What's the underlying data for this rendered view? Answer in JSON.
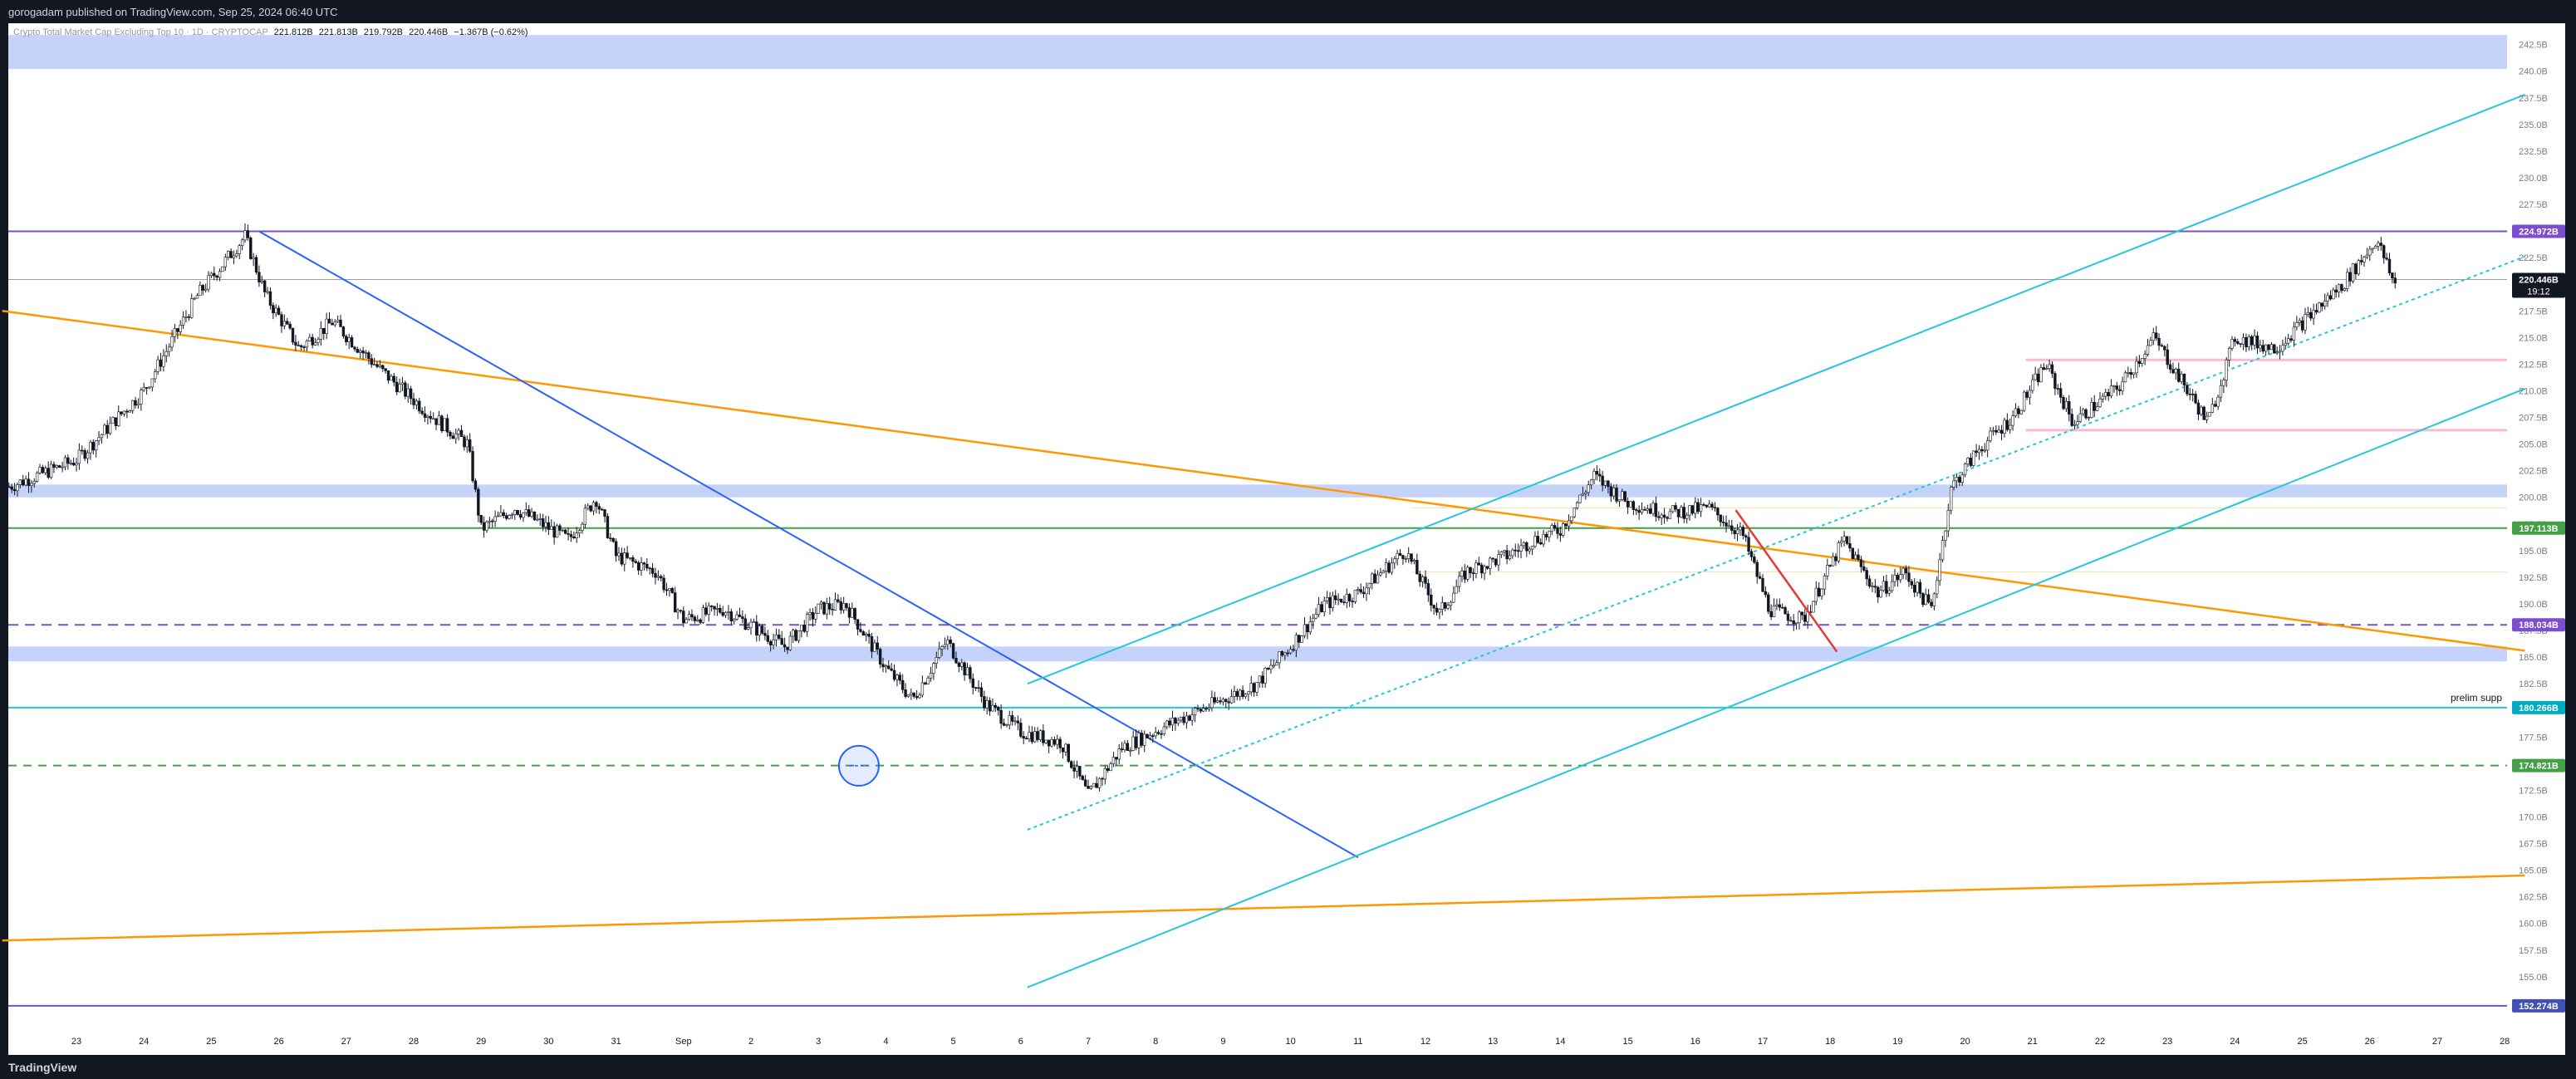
{
  "header": {
    "published_text": "gorogadam published on TradingView.com, Sep 25, 2024 06:40 UTC"
  },
  "legend": {
    "symbol": "Crypto Total Market Cap Excluding Top 10 · 1D · CRYPTOCAP",
    "open": "221.812B",
    "high": "221.813B",
    "low": "219.792B",
    "close": "220.446B",
    "change": "−1.367B (−0.62%)"
  },
  "footer": {
    "brand": "TradingView"
  },
  "colors": {
    "background": "#131722",
    "pane": "#ffffff",
    "zone": "#c2d1fb",
    "purple": "#7c4dce",
    "green": "#43a047",
    "cyan": "#26c6da",
    "blue": "#2962ff",
    "orange": "#ff9800",
    "red": "#e53935",
    "pink": "#f8bbd0",
    "candle_up": "#ffffff",
    "candle_down": "#131722"
  },
  "chart_data": {
    "type": "candlestick",
    "title": "",
    "xlabel": "",
    "ylabel": "",
    "ylim": [
      150.0,
      244.5
    ],
    "x_tick_labels": [
      "23",
      "24",
      "25",
      "26",
      "27",
      "28",
      "29",
      "30",
      "31",
      "Sep",
      "2",
      "3",
      "4",
      "5",
      "6",
      "7",
      "8",
      "9",
      "10",
      "11",
      "12",
      "13",
      "14",
      "15",
      "16",
      "17",
      "18",
      "19",
      "20",
      "21",
      "22",
      "23",
      "24",
      "25",
      "26",
      "27",
      "28"
    ],
    "y_tick_labels": [
      "242.5B",
      "240.0B",
      "237.5B",
      "235.0B",
      "232.5B",
      "230.0B",
      "227.5B",
      "225.0B",
      "222.5B",
      "220.0B",
      "217.5B",
      "215.0B",
      "212.5B",
      "210.0B",
      "207.5B",
      "205.0B",
      "202.5B",
      "200.0B",
      "197.5B",
      "195.0B",
      "192.5B",
      "190.0B",
      "187.5B",
      "185.0B",
      "182.5B",
      "180.0B",
      "177.5B",
      "175.0B",
      "172.5B",
      "170.0B",
      "167.5B",
      "165.0B",
      "162.5B",
      "160.0B",
      "157.5B",
      "155.0B"
    ],
    "path_day_values": [
      [
        -1.0,
        201.0
      ],
      [
        0.0,
        203.5
      ],
      [
        1.0,
        210.0
      ],
      [
        1.8,
        219.0
      ],
      [
        2.5,
        224.5
      ],
      [
        2.8,
        219.0
      ],
      [
        3.3,
        214.0
      ],
      [
        3.8,
        216.5
      ],
      [
        4.5,
        212.0
      ],
      [
        5.2,
        208.0
      ],
      [
        5.8,
        205.0
      ],
      [
        6.0,
        197.0
      ],
      [
        6.5,
        199.0
      ],
      [
        7.3,
        196.0
      ],
      [
        7.7,
        200.0
      ],
      [
        8.0,
        194.5
      ],
      [
        8.6,
        193.0
      ],
      [
        9.0,
        188.5
      ],
      [
        9.6,
        189.5
      ],
      [
        10.5,
        186.0
      ],
      [
        11.0,
        189.5
      ],
      [
        11.4,
        190.0
      ],
      [
        12.0,
        184.0
      ],
      [
        12.4,
        181.0
      ],
      [
        12.9,
        186.5
      ],
      [
        13.5,
        180.5
      ],
      [
        14.0,
        178.0
      ],
      [
        14.6,
        177.0
      ],
      [
        15.0,
        172.0
      ],
      [
        15.5,
        176.5
      ],
      [
        16.3,
        179.0
      ],
      [
        17.0,
        181.0
      ],
      [
        17.5,
        182.5
      ],
      [
        18.0,
        186.0
      ],
      [
        18.5,
        190.0
      ],
      [
        19.0,
        191.0
      ],
      [
        19.7,
        195.0
      ],
      [
        20.2,
        189.0
      ],
      [
        20.6,
        193.0
      ],
      [
        21.2,
        194.5
      ],
      [
        21.6,
        196.0
      ],
      [
        22.0,
        197.0
      ],
      [
        22.3,
        200.0
      ],
      [
        22.5,
        202.0
      ],
      [
        23.0,
        199.5
      ],
      [
        23.6,
        198.5
      ],
      [
        24.2,
        199.0
      ],
      [
        24.7,
        196.5
      ],
      [
        25.1,
        189.5
      ],
      [
        25.6,
        188.5
      ],
      [
        26.2,
        196.0
      ],
      [
        26.7,
        191.0
      ],
      [
        27.1,
        193.0
      ],
      [
        27.5,
        189.5
      ],
      [
        27.8,
        201.0
      ],
      [
        28.2,
        204.5
      ],
      [
        28.7,
        207.5
      ],
      [
        29.2,
        212.5
      ],
      [
        29.6,
        207.0
      ],
      [
        30.3,
        210.5
      ],
      [
        30.8,
        215.0
      ],
      [
        31.2,
        211.0
      ],
      [
        31.6,
        207.0
      ],
      [
        32.0,
        215.0
      ],
      [
        32.6,
        214.0
      ],
      [
        33.1,
        217.0
      ],
      [
        33.6,
        220.0
      ],
      [
        34.1,
        224.2
      ],
      [
        34.4,
        219.5
      ]
    ],
    "markers": {
      "purple_line": 224.972,
      "last_price": 220.446,
      "green_line": 197.113,
      "purple_dashed": 188.034,
      "cyan_line": 180.266,
      "green_dashed": 174.821,
      "bottom_line": 152.274,
      "blue_zones": [
        [
          240.2,
          243.4
        ],
        [
          200.0,
          201.2
        ],
        [
          184.6,
          186.0
        ]
      ],
      "pink_lines": [
        212.9,
        206.3
      ],
      "orange_tick_levels": [
        199.0,
        193.0
      ]
    },
    "price_labels": {
      "purple_line": "224.972B",
      "last_price": "220.446B",
      "countdown": "19:12",
      "green_line": "197.113B",
      "purple_dashed": "188.034B",
      "cyan_line": "180.266B",
      "green_dashed": "174.821B",
      "bottom_line": "152.274B"
    },
    "annotations": {
      "prelim_supp": "prelim supp"
    },
    "trendlines": {
      "blue_down": [
        [
          2.7,
          225.0
        ],
        [
          19.0,
          166.2
        ]
      ],
      "orange_down": [
        [
          -1.1,
          217.5
        ],
        [
          36.3,
          185.6
        ]
      ],
      "orange_up": [
        [
          -1.1,
          158.4
        ],
        [
          36.3,
          164.5
        ]
      ],
      "cyan_upper": [
        [
          14.1,
          182.5
        ],
        [
          36.3,
          237.8
        ]
      ],
      "cyan_lower": [
        [
          14.1,
          154.0
        ],
        [
          36.3,
          210.2
        ]
      ],
      "cyan_dotted": [
        [
          14.1,
          168.8
        ],
        [
          36.3,
          222.6
        ]
      ],
      "red_segment": [
        [
          24.6,
          198.8
        ],
        [
          26.1,
          185.5
        ]
      ]
    },
    "circle_marker": [
      11.6,
      174.8
    ]
  }
}
